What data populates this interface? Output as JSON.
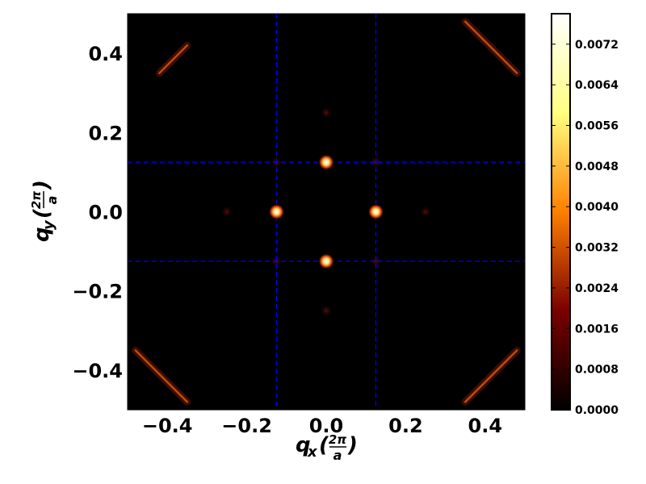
{
  "chart_data": {
    "type": "heatmap",
    "title": "",
    "xlabel": "q_x(2π/a)",
    "ylabel": "q_y(2π/a)",
    "xlim": [
      -0.5,
      0.5
    ],
    "ylim": [
      -0.5,
      0.5
    ],
    "x_ticks": [
      "−0.4",
      "−0.2",
      "0.0",
      "0.2",
      "0.4"
    ],
    "x_tick_values": [
      -0.4,
      -0.2,
      0.0,
      0.2,
      0.4
    ],
    "y_ticks": [
      "0.4",
      "0.2",
      "0.0",
      "−0.2",
      "−0.4"
    ],
    "y_tick_values": [
      0.4,
      0.2,
      0.0,
      -0.2,
      -0.4
    ],
    "colorbar": {
      "colormap": "afmhot",
      "range": [
        0.0,
        0.0078
      ],
      "ticks": [
        "0.0072",
        "0.0064",
        "0.0056",
        "0.0048",
        "0.0040",
        "0.0032",
        "0.0024",
        "0.0016",
        "0.0008",
        "0.0000"
      ],
      "tick_values": [
        0.0072,
        0.0064,
        0.0056,
        0.0048,
        0.004,
        0.0032,
        0.0024,
        0.0016,
        0.0008,
        0.0
      ]
    },
    "peaks": [
      {
        "qx": 0.0,
        "qy": 0.125,
        "intensity": 0.0078
      },
      {
        "qx": 0.0,
        "qy": -0.125,
        "intensity": 0.0078
      },
      {
        "qx": -0.125,
        "qy": 0.0,
        "intensity": 0.0078
      },
      {
        "qx": 0.125,
        "qy": 0.0,
        "intensity": 0.0078
      },
      {
        "qx": -0.125,
        "qy": 0.125,
        "intensity": 0.0012
      },
      {
        "qx": 0.125,
        "qy": 0.125,
        "intensity": 0.0012
      },
      {
        "qx": -0.125,
        "qy": -0.125,
        "intensity": 0.0012
      },
      {
        "qx": 0.125,
        "qy": -0.125,
        "intensity": 0.0012
      },
      {
        "qx": 0.0,
        "qy": 0.25,
        "intensity": 0.0008
      },
      {
        "qx": 0.0,
        "qy": -0.25,
        "intensity": 0.0008
      },
      {
        "qx": -0.25,
        "qy": 0.0,
        "intensity": 0.0008
      },
      {
        "qx": 0.25,
        "qy": 0.0,
        "intensity": 0.0008
      }
    ],
    "corner_streaks": [
      {
        "from": [
          -0.42,
          0.35
        ],
        "to": [
          -0.35,
          0.42
        ],
        "intensity": 0.004
      },
      {
        "from": [
          0.35,
          0.48
        ],
        "to": [
          0.48,
          0.35
        ],
        "intensity": 0.004
      },
      {
        "from": [
          -0.48,
          -0.35
        ],
        "to": [
          -0.35,
          -0.48
        ],
        "intensity": 0.004
      },
      {
        "from": [
          0.35,
          -0.48
        ],
        "to": [
          0.48,
          -0.35
        ],
        "intensity": 0.004
      }
    ],
    "reference_lines": {
      "color": "#0000ff",
      "style": "dashed",
      "x": [
        -0.125,
        0.125
      ],
      "y": [
        0.125,
        -0.125
      ]
    },
    "grid": false
  }
}
